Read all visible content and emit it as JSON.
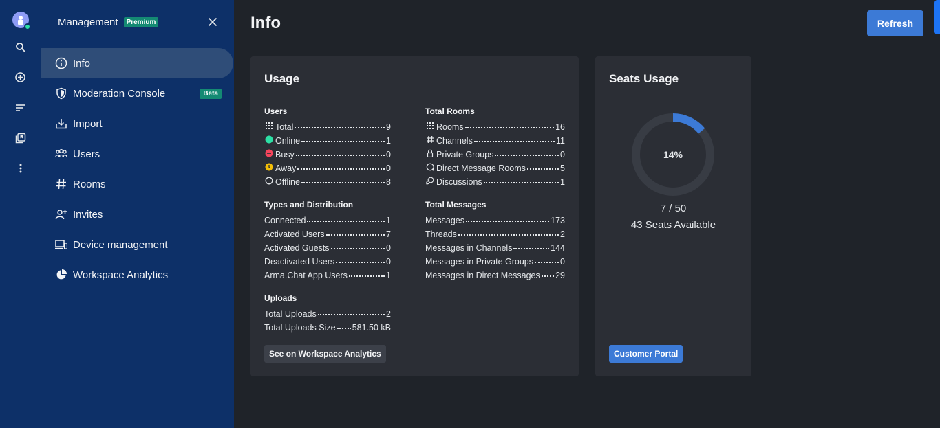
{
  "sidebar": {
    "title": "Management",
    "premium_badge": "Premium",
    "items": [
      {
        "label": "Info"
      },
      {
        "label": "Moderation Console",
        "badge": "Beta"
      },
      {
        "label": "Import"
      },
      {
        "label": "Users"
      },
      {
        "label": "Rooms"
      },
      {
        "label": "Invites"
      },
      {
        "label": "Device management"
      },
      {
        "label": "Workspace Analytics"
      }
    ]
  },
  "main": {
    "title": "Info",
    "refresh_label": "Refresh",
    "usage": {
      "title": "Usage",
      "users": {
        "title": "Users",
        "rows": [
          {
            "label": "Total",
            "value": "9",
            "icon": "grid-icon"
          },
          {
            "label": "Online",
            "value": "1",
            "icon": "online-dot-icon",
            "color": "#2de0a5"
          },
          {
            "label": "Busy",
            "value": "0",
            "icon": "busy-dot-icon",
            "color": "#f5455c"
          },
          {
            "label": "Away",
            "value": "0",
            "icon": "away-dot-icon",
            "color": "#f3be08"
          },
          {
            "label": "Offline",
            "value": "8",
            "icon": "offline-ring-icon"
          }
        ]
      },
      "types": {
        "title": "Types and Distribution",
        "rows": [
          {
            "label": "Connected",
            "value": "1"
          },
          {
            "label": "Activated Users",
            "value": "7"
          },
          {
            "label": "Activated Guests",
            "value": "0"
          },
          {
            "label": "Deactivated Users",
            "value": "0"
          },
          {
            "label": "Arma.Chat App Users",
            "value": "1"
          }
        ]
      },
      "uploads": {
        "title": "Uploads",
        "rows": [
          {
            "label": "Total Uploads",
            "value": "2"
          },
          {
            "label": "Total Uploads Size",
            "value": "581.50 kB"
          }
        ]
      },
      "rooms": {
        "title": "Total Rooms",
        "rows": [
          {
            "label": "Rooms",
            "value": "16",
            "icon": "grid-icon"
          },
          {
            "label": "Channels",
            "value": "11",
            "icon": "hash-icon"
          },
          {
            "label": "Private Groups",
            "value": "0",
            "icon": "lock-icon"
          },
          {
            "label": "Direct Message Rooms",
            "value": "5",
            "icon": "message-icon"
          },
          {
            "label": "Discussions",
            "value": "1",
            "icon": "discussion-icon"
          }
        ]
      },
      "messages": {
        "title": "Total Messages",
        "rows": [
          {
            "label": "Messages",
            "value": "173"
          },
          {
            "label": "Threads",
            "value": "2"
          },
          {
            "label": "Messages in Channels",
            "value": "144"
          },
          {
            "label": "Messages in Private Groups",
            "value": "0"
          },
          {
            "label": "Messages in Direct Messages",
            "value": "29"
          }
        ]
      },
      "analytics_button": "See on Workspace Analytics"
    },
    "seats": {
      "title": "Seats Usage",
      "percent_label": "14%",
      "fraction": 0.14,
      "count": "7 / 50",
      "available": "43 Seats Available",
      "portal_button": "Customer Portal"
    }
  },
  "colors": {
    "sidebar": "#0d3068",
    "accent": "#3c7ad6",
    "badge": "#148a73",
    "card": "#2b2e35",
    "background": "#1f2329"
  }
}
